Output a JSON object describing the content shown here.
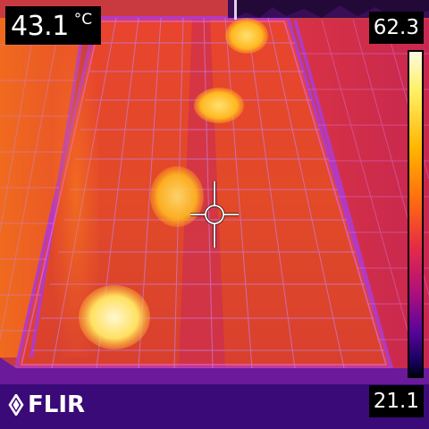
{
  "readout": {
    "spot_value": "43.1",
    "spot_unit": "°C"
  },
  "scale": {
    "max": "62.3",
    "min": "21.1"
  },
  "brand": {
    "logo_text": "FLIR"
  }
}
